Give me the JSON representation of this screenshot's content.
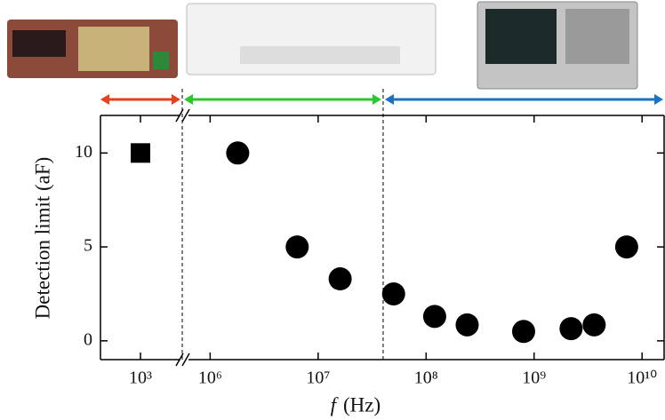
{
  "chart_data": {
    "type": "scatter",
    "y_label": "Detection limit (aF)",
    "x_label_var": "f",
    "x_label_unit": "(Hz)",
    "log_x": true,
    "ylim": [
      -1,
      12
    ],
    "yticks": [
      0,
      5,
      10
    ],
    "x_segments": [
      {
        "xlim": [
          400,
          2500
        ],
        "xticks": [
          {
            "value": 1000,
            "label": "10³"
          }
        ]
      },
      {
        "xlim": [
          630000,
          16000000000
        ],
        "xticks": [
          {
            "value": 1000000,
            "label": "10⁶"
          },
          {
            "value": 10000000,
            "label": "10⁷"
          },
          {
            "value": 100000000,
            "label": "10⁸"
          },
          {
            "value": 1000000000,
            "label": "10⁹"
          },
          {
            "value": 10000000000,
            "label": "10¹⁰"
          }
        ]
      }
    ],
    "divider": 40000000,
    "range_colors": [
      "#e8401c",
      "#2ec52e",
      "#1a73c2"
    ],
    "series": [
      {
        "marker": "square",
        "color": "#000000",
        "segment": 0,
        "x": [
          1000
        ],
        "values": [
          10
        ]
      },
      {
        "marker": "circle",
        "color": "#000000",
        "segment": 1,
        "x": [
          1800000,
          6400000,
          16000000,
          50000000,
          120000000,
          240000000,
          800000000,
          2200000000,
          3600000000,
          7200000000
        ],
        "values": [
          10,
          5,
          3.3,
          2.5,
          1.3,
          0.85,
          0.5,
          0.65,
          0.85,
          5
        ]
      }
    ]
  }
}
